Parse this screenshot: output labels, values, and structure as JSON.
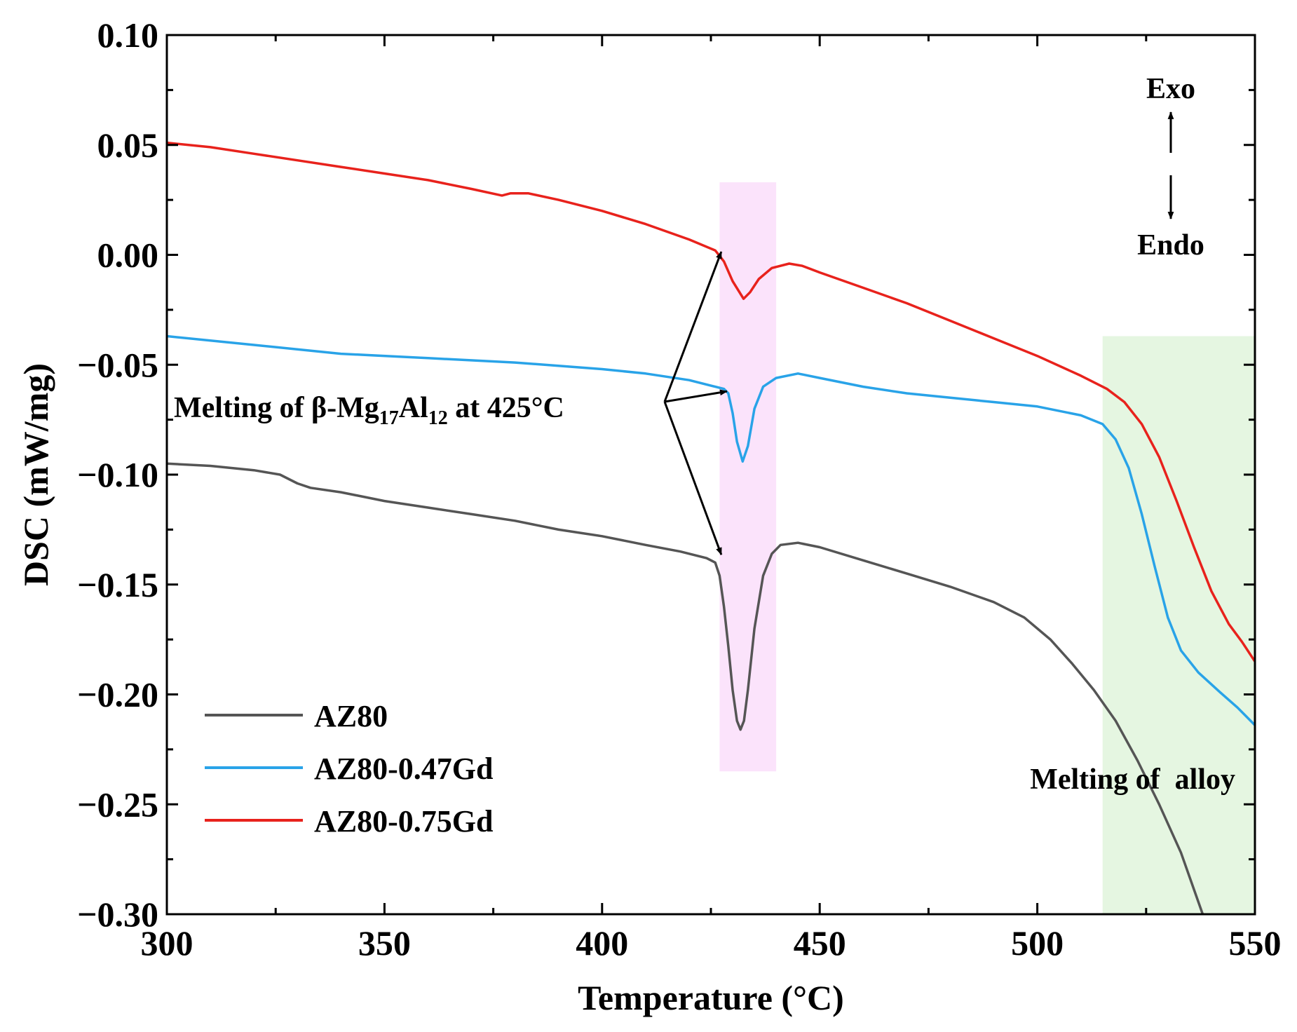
{
  "chart_data": {
    "type": "line",
    "xlabel": "Temperature (°C)",
    "ylabel": "DSC (mW/mg)",
    "xlim": [
      300,
      550
    ],
    "ylim": [
      -0.3,
      0.1
    ],
    "x_ticks": [
      300,
      350,
      400,
      450,
      500,
      550
    ],
    "x_tick_labels": [
      "300",
      "350",
      "400",
      "450",
      "500",
      "550"
    ],
    "y_ticks": [
      0.1,
      0.05,
      0.0,
      -0.05,
      -0.1,
      -0.15,
      -0.2,
      -0.25,
      -0.3
    ],
    "y_tick_labels": [
      "0.10",
      "0.05",
      "0.00",
      "−0.05",
      "−0.10",
      "−0.15",
      "−0.20",
      "−0.25",
      "−0.30"
    ],
    "grid": false,
    "legend_position": "bottom-left",
    "series": [
      {
        "name": "AZ80",
        "color": "#555555",
        "points": [
          [
            300,
            -0.095
          ],
          [
            310,
            -0.096
          ],
          [
            320,
            -0.098
          ],
          [
            326,
            -0.1
          ],
          [
            330,
            -0.104
          ],
          [
            333,
            -0.106
          ],
          [
            340,
            -0.108
          ],
          [
            350,
            -0.112
          ],
          [
            360,
            -0.115
          ],
          [
            370,
            -0.118
          ],
          [
            380,
            -0.121
          ],
          [
            390,
            -0.125
          ],
          [
            400,
            -0.128
          ],
          [
            410,
            -0.132
          ],
          [
            418,
            -0.135
          ],
          [
            424,
            -0.138
          ],
          [
            426,
            -0.14
          ],
          [
            427,
            -0.146
          ],
          [
            428,
            -0.16
          ],
          [
            429,
            -0.178
          ],
          [
            430,
            -0.198
          ],
          [
            431,
            -0.212
          ],
          [
            431.8,
            -0.216
          ],
          [
            432.6,
            -0.212
          ],
          [
            433.5,
            -0.198
          ],
          [
            435,
            -0.17
          ],
          [
            437,
            -0.146
          ],
          [
            439,
            -0.136
          ],
          [
            441,
            -0.132
          ],
          [
            445,
            -0.131
          ],
          [
            450,
            -0.133
          ],
          [
            460,
            -0.139
          ],
          [
            470,
            -0.145
          ],
          [
            480,
            -0.151
          ],
          [
            490,
            -0.158
          ],
          [
            497,
            -0.165
          ],
          [
            503,
            -0.175
          ],
          [
            508,
            -0.186
          ],
          [
            513,
            -0.198
          ],
          [
            518,
            -0.212
          ],
          [
            523,
            -0.23
          ],
          [
            528,
            -0.25
          ],
          [
            533,
            -0.272
          ],
          [
            538,
            -0.3
          ]
        ]
      },
      {
        "name": "AZ80-0.47Gd",
        "color": "#29a3e8",
        "points": [
          [
            300,
            -0.037
          ],
          [
            320,
            -0.041
          ],
          [
            340,
            -0.045
          ],
          [
            360,
            -0.047
          ],
          [
            380,
            -0.049
          ],
          [
            400,
            -0.052
          ],
          [
            410,
            -0.054
          ],
          [
            420,
            -0.057
          ],
          [
            426,
            -0.06
          ],
          [
            428,
            -0.061
          ],
          [
            429,
            -0.063
          ],
          [
            430,
            -0.072
          ],
          [
            431,
            -0.085
          ],
          [
            432.3,
            -0.094
          ],
          [
            433.5,
            -0.087
          ],
          [
            435,
            -0.07
          ],
          [
            437,
            -0.06
          ],
          [
            440,
            -0.056
          ],
          [
            445,
            -0.054
          ],
          [
            450,
            -0.056
          ],
          [
            460,
            -0.06
          ],
          [
            470,
            -0.063
          ],
          [
            480,
            -0.065
          ],
          [
            490,
            -0.067
          ],
          [
            500,
            -0.069
          ],
          [
            510,
            -0.073
          ],
          [
            515,
            -0.077
          ],
          [
            518,
            -0.084
          ],
          [
            521,
            -0.097
          ],
          [
            524,
            -0.118
          ],
          [
            527,
            -0.142
          ],
          [
            530,
            -0.165
          ],
          [
            533,
            -0.18
          ],
          [
            537,
            -0.19
          ],
          [
            542,
            -0.199
          ],
          [
            546,
            -0.206
          ],
          [
            550,
            -0.214
          ]
        ]
      },
      {
        "name": "AZ80-0.75Gd",
        "color": "#e8221c",
        "points": [
          [
            300,
            0.051
          ],
          [
            310,
            0.049
          ],
          [
            320,
            0.046
          ],
          [
            330,
            0.043
          ],
          [
            340,
            0.04
          ],
          [
            350,
            0.037
          ],
          [
            360,
            0.034
          ],
          [
            370,
            0.03
          ],
          [
            377,
            0.027
          ],
          [
            379,
            0.028
          ],
          [
            383,
            0.028
          ],
          [
            390,
            0.025
          ],
          [
            400,
            0.02
          ],
          [
            410,
            0.014
          ],
          [
            420,
            0.007
          ],
          [
            426,
            0.002
          ],
          [
            428,
            -0.003
          ],
          [
            430,
            -0.012
          ],
          [
            432.5,
            -0.02
          ],
          [
            434,
            -0.017
          ],
          [
            436,
            -0.011
          ],
          [
            439,
            -0.006
          ],
          [
            443,
            -0.004
          ],
          [
            446,
            -0.005
          ],
          [
            450,
            -0.008
          ],
          [
            460,
            -0.015
          ],
          [
            470,
            -0.022
          ],
          [
            480,
            -0.03
          ],
          [
            490,
            -0.038
          ],
          [
            500,
            -0.046
          ],
          [
            510,
            -0.055
          ],
          [
            516,
            -0.061
          ],
          [
            520,
            -0.067
          ],
          [
            524,
            -0.077
          ],
          [
            528,
            -0.092
          ],
          [
            532,
            -0.112
          ],
          [
            536,
            -0.133
          ],
          [
            540,
            -0.153
          ],
          [
            544,
            -0.168
          ],
          [
            547,
            -0.176
          ],
          [
            550,
            -0.185
          ]
        ]
      }
    ],
    "shaded_regions": [
      {
        "label": "",
        "x_range": [
          427,
          440
        ],
        "y_range": [
          -0.235,
          0.033
        ],
        "color": "#fbe3fb"
      },
      {
        "label": "Melting of  alloy",
        "x_range": [
          515,
          550
        ],
        "y_range": [
          -0.3,
          -0.037
        ],
        "color": "#e5f6e1"
      }
    ],
    "annotations": [
      {
        "id": "beta",
        "text_pre": "Melting of β-Mg",
        "sub1": "17",
        "text_mid": "Al",
        "sub2": "12",
        "text_post": " at 425°C",
        "arrows_to": [
          [
            427.5,
            0.002
          ],
          [
            429,
            -0.062
          ],
          [
            427.5,
            -0.137
          ]
        ]
      },
      {
        "id": "exo",
        "text": "Exo"
      },
      {
        "id": "endo",
        "text": "Endo"
      }
    ]
  }
}
